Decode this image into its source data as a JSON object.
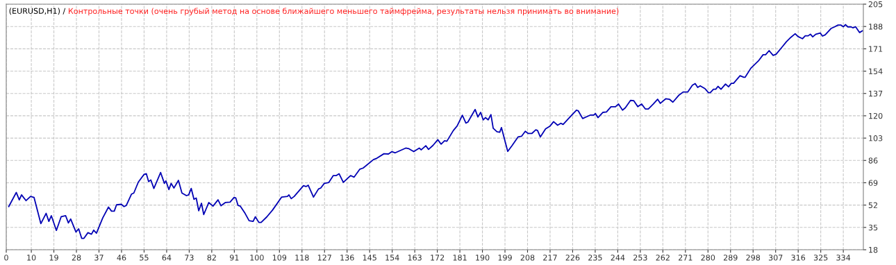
{
  "chart_data": {
    "type": "line",
    "title": "(EURUSD,H1) /",
    "subtitle": "Контрольные точки (очень грубый метод на основе ближайшего меньшего таймфрейма, результаты нельзя принимать во внимание)",
    "xlim": [
      0,
      342
    ],
    "ylim": [
      18,
      205
    ],
    "xticks": [
      0,
      10,
      19,
      28,
      37,
      46,
      55,
      64,
      73,
      82,
      91,
      100,
      109,
      118,
      127,
      136,
      145,
      154,
      163,
      172,
      181,
      190,
      199,
      208,
      217,
      226,
      235,
      244,
      253,
      262,
      271,
      280,
      289,
      298,
      307,
      316,
      325,
      334
    ],
    "yticks": [
      18,
      35,
      52,
      69,
      86,
      103,
      120,
      137,
      154,
      171,
      188,
      205
    ],
    "grid": true,
    "line_style": "dashed",
    "series": [
      {
        "color": "#0000b4",
        "line_style": "solid",
        "x": [
          1.0,
          4.0,
          5.2,
          6.1,
          7.9,
          9.7,
          11.1,
          13.8,
          15.9,
          17.0,
          18.0,
          20.0,
          21.9,
          23.7,
          24.8,
          25.7,
          27.8,
          28.9,
          30.1,
          31.0,
          32.6,
          34.0,
          34.9,
          36.0,
          38.5,
          40.8,
          42.0,
          43.1,
          44.0,
          45.9,
          47.0,
          47.9,
          50.0,
          50.9,
          52.7,
          55.0,
          55.9,
          56.8,
          57.7,
          58.9,
          61.6,
          63.1,
          63.7,
          64.9,
          65.8,
          66.9,
          68.7,
          70.1,
          71.9,
          72.8,
          73.8,
          74.9,
          75.8,
          76.8,
          77.9,
          78.8,
          80.8,
          82.5,
          84.5,
          85.7,
          87.5,
          89.3,
          90.9,
          91.6,
          92.5,
          93.4,
          95.3,
          96.9,
          98.5,
          99.4,
          100.8,
          101.7,
          104.0,
          106.3,
          109.9,
          112.2,
          112.8,
          113.7,
          114.9,
          118.6,
          119.6,
          120.5,
          122.6,
          124.6,
          125.5,
          126.9,
          128.7,
          130.5,
          131.7,
          132.8,
          134.5,
          137.4,
          138.8,
          141.1,
          142.4,
          146.5,
          147.9,
          150.7,
          152.5,
          153.9,
          155.2,
          159.4,
          160.7,
          162.6,
          164.8,
          165.6,
          167.4,
          168.5,
          170.3,
          172.2,
          173.5,
          174.9,
          175.8,
          178.4,
          179.9,
          182.0,
          183.4,
          184.2,
          187.1,
          188.2,
          189.3,
          190.3,
          191.2,
          192.3,
          193.4,
          194.3,
          195.8,
          196.9,
          197.6,
          200.1,
          201.9,
          204.2,
          205.6,
          207.1,
          208.3,
          209.7,
          211.3,
          212.0,
          213.1,
          215.2,
          217.0,
          218.4,
          220.0,
          221.3,
          222.2,
          225.2,
          227.5,
          228.2,
          230.0,
          231.6,
          233.0,
          234.4,
          235.1,
          236.1,
          238.1,
          239.5,
          241.3,
          243.1,
          244.3,
          245.9,
          247.0,
          249.1,
          250.4,
          252.0,
          253.5,
          255.0,
          256.2,
          258.2,
          259.9,
          261.0,
          263.2,
          264.6,
          266.0,
          268.3,
          270.1,
          271.9,
          273.8,
          274.9,
          275.9,
          276.9,
          278.8,
          280.2,
          280.9,
          282.2,
          283.1,
          284.0,
          285.2,
          287.0,
          288.2,
          289.3,
          290.2,
          292.8,
          294.3,
          294.8,
          297.1,
          300.3,
          302.0,
          303.0,
          304.4,
          306.0,
          307.2,
          309.3,
          311.3,
          313.1,
          314.8,
          315.9,
          317.7,
          318.8,
          320.0,
          320.9,
          321.8,
          323.0,
          324.8,
          325.7,
          326.8,
          329.1,
          330.5,
          331.9,
          333.0,
          334.0,
          334.9,
          335.8,
          337.1,
          337.8,
          338.9,
          340.5,
          341.6
        ],
        "values": [
          50.9,
          61.6,
          56.0,
          59.8,
          55.4,
          58.6,
          57.8,
          37.9,
          45.7,
          39.6,
          43.9,
          32.7,
          43.1,
          43.9,
          38.4,
          41.4,
          31.5,
          33.9,
          26.7,
          26.7,
          31.0,
          29.8,
          32.9,
          30.6,
          42.2,
          50.5,
          47.4,
          47.4,
          52.2,
          52.6,
          50.9,
          51.7,
          60.4,
          61.2,
          69.5,
          75.4,
          75.9,
          69.9,
          71.1,
          64.7,
          76.8,
          68.5,
          70.4,
          63.8,
          68.5,
          65.0,
          70.8,
          61.2,
          59.2,
          59.8,
          64.7,
          56.4,
          57.4,
          47.7,
          53.4,
          44.8,
          53.9,
          51.2,
          56.0,
          51.5,
          54.0,
          54.3,
          57.8,
          57.4,
          51.7,
          51.2,
          45.7,
          40.1,
          39.6,
          43.1,
          38.8,
          38.8,
          43.1,
          48.3,
          58.1,
          58.6,
          59.8,
          56.9,
          58.6,
          66.8,
          66.1,
          67.1,
          58.1,
          64.3,
          65.0,
          68.5,
          69.2,
          74.5,
          74.5,
          75.9,
          69.3,
          74.5,
          73.3,
          79.4,
          80.2,
          86.6,
          87.7,
          91.1,
          90.9,
          92.7,
          91.8,
          95.4,
          94.9,
          92.7,
          95.4,
          94.1,
          97.2,
          94.4,
          97.5,
          101.8,
          98.4,
          101.0,
          100.6,
          108.8,
          112.2,
          120.4,
          114.5,
          115.2,
          124.8,
          119.1,
          122.6,
          116.9,
          118.6,
          116.9,
          120.9,
          110.5,
          107.9,
          107.5,
          111.0,
          92.9,
          97.5,
          103.9,
          104.4,
          108.2,
          106.5,
          106.5,
          109.3,
          108.8,
          103.9,
          110.0,
          112.2,
          115.5,
          112.8,
          114.3,
          113.4,
          119.6,
          124.3,
          123.9,
          117.9,
          119.3,
          120.5,
          120.5,
          121.7,
          118.6,
          122.6,
          122.9,
          126.9,
          126.9,
          129.0,
          124.3,
          126.0,
          131.7,
          131.5,
          126.9,
          129.0,
          125.2,
          125.2,
          129.0,
          132.6,
          129.5,
          133.0,
          132.6,
          130.4,
          135.5,
          138.1,
          138.1,
          143.3,
          144.5,
          141.6,
          142.8,
          140.7,
          137.6,
          137.6,
          140.2,
          140.2,
          142.4,
          140.2,
          144.2,
          142.1,
          144.7,
          144.7,
          150.5,
          149.3,
          149.3,
          156.2,
          162.2,
          166.5,
          166.5,
          169.6,
          166.0,
          166.9,
          171.7,
          176.4,
          179.8,
          182.5,
          180.4,
          178.7,
          180.9,
          180.9,
          182.1,
          180.1,
          182.1,
          183.0,
          180.7,
          181.7,
          186.5,
          187.7,
          189.1,
          189.1,
          187.8,
          189.4,
          187.7,
          187.7,
          187.0,
          187.8,
          183.4,
          184.7
        ]
      }
    ]
  }
}
